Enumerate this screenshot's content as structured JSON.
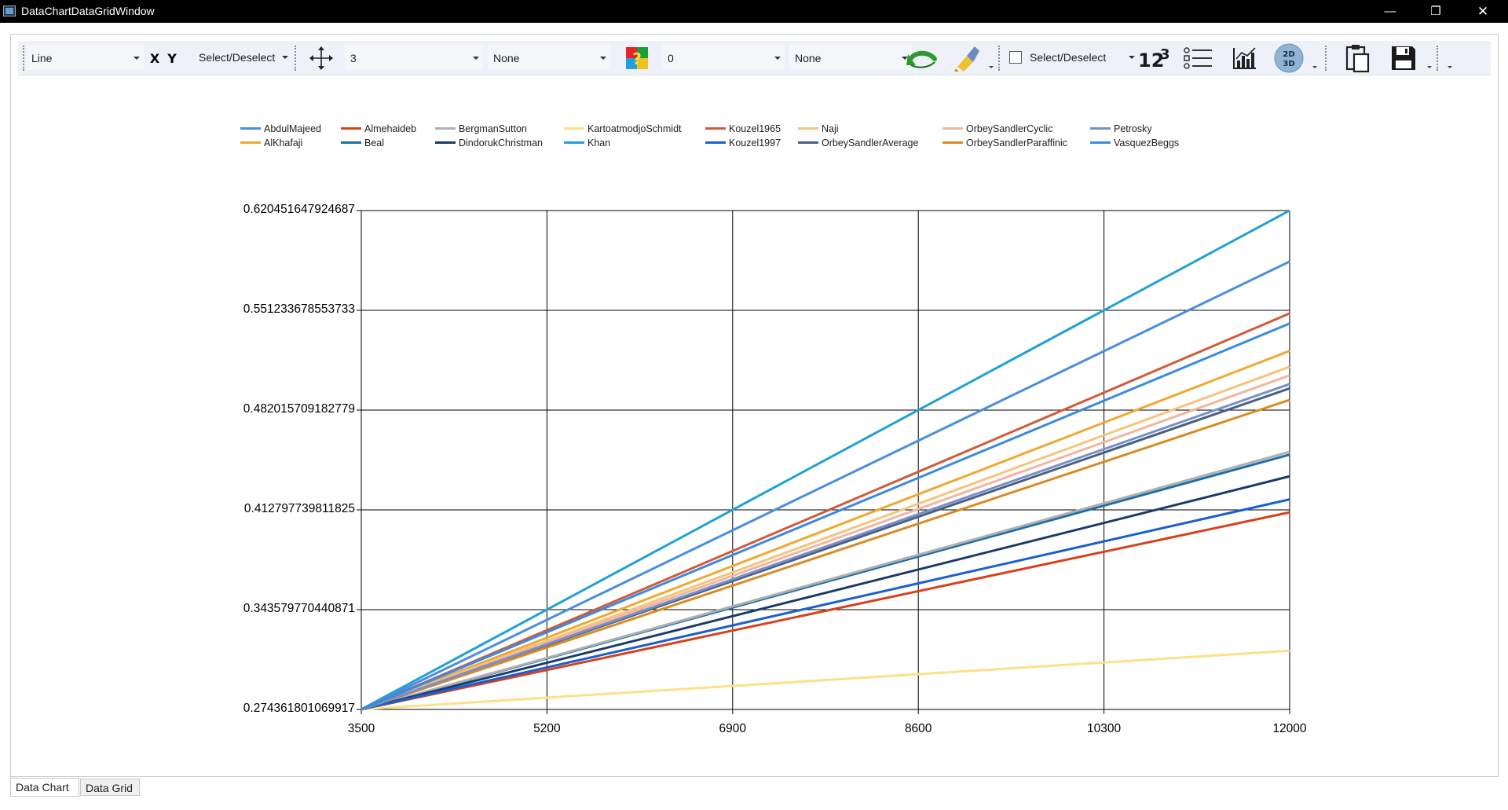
{
  "window": {
    "title": "DataChartDataGridWindow",
    "controls": {
      "minimize": "—",
      "maximize": "❐",
      "close": "✕"
    }
  },
  "toolbar": {
    "chart_type": "Line",
    "x_icon": "X",
    "y_icon": "Y",
    "select_deselect_1": "Select/Deselect",
    "line_width": "3",
    "marker_style": "None",
    "value_combo": "0",
    "label_style": "None",
    "select_deselect_2": "Select/Deselect",
    "icons": [
      "move-axes-icon",
      "color-help-icon",
      "undo-icon",
      "paint-brush-icon",
      "numbers-123-icon",
      "legend-list-icon",
      "chart-icon",
      "toggle-2d-3d-icon",
      "clipboard-icon",
      "save-icon"
    ],
    "label_2d": "2D",
    "label_3d": "3D",
    "label_123": "123"
  },
  "tabs": {
    "data_chart": "Data Chart",
    "data_grid": "Data Grid"
  },
  "chart_data": {
    "type": "line",
    "title": "",
    "xlabel": "",
    "ylabel": "",
    "x": [
      3500,
      12000
    ],
    "xticks": [
      "3500",
      "5200",
      "6900",
      "8600",
      "10300",
      "12000"
    ],
    "xlim": [
      3500,
      12000
    ],
    "yticks": [
      "0.620451647924687",
      "0.551233678553733",
      "0.482015709182779",
      "0.412797739811825",
      "0.343579770440871",
      "0.274361801069917"
    ],
    "ylim": [
      0.274361801069917,
      0.620451647924687
    ],
    "grid": true,
    "legend_placement": "top",
    "series": [
      {
        "name": "AbdulMajeed",
        "color": "#4a8fde",
        "values": [
          0.2744,
          0.5851
        ]
      },
      {
        "name": "AlKhafaji",
        "color": "#f0a830",
        "values": [
          0.2744,
          0.5231
        ]
      },
      {
        "name": "Almehaideb",
        "color": "#d9401a",
        "values": [
          0.2744,
          0.4111
        ]
      },
      {
        "name": "Beal",
        "color": "#1c6fa8",
        "values": [
          0.2744,
          0.4511
        ]
      },
      {
        "name": "BergmanSutton",
        "color": "#b0b0b0",
        "values": [
          0.2744,
          0.4531
        ]
      },
      {
        "name": "DindorukChristman",
        "color": "#1a3a6a",
        "values": [
          0.2744,
          0.4361
        ]
      },
      {
        "name": "KartoatmodjoSchmidt",
        "color": "#fde08a",
        "values": [
          0.2744,
          0.3151
        ]
      },
      {
        "name": "Khan",
        "color": "#21a0d8",
        "values": [
          0.2744,
          0.6205
        ]
      },
      {
        "name": "Kouzel1965",
        "color": "#d25a3a",
        "values": [
          0.2744,
          0.5491
        ]
      },
      {
        "name": "Kouzel1997",
        "color": "#1a5fd0",
        "values": [
          0.2744,
          0.4201
        ]
      },
      {
        "name": "Naji",
        "color": "#f6c47a",
        "values": [
          0.2744,
          0.5121
        ]
      },
      {
        "name": "OrbeySandlerAverage",
        "color": "#4a6080",
        "values": [
          0.2744,
          0.4971
        ]
      },
      {
        "name": "OrbeySandlerCyclic",
        "color": "#f2b5a0",
        "values": [
          0.2744,
          0.5061
        ]
      },
      {
        "name": "OrbeySandlerParaffinic",
        "color": "#dc8a20",
        "values": [
          0.2744,
          0.4891
        ]
      },
      {
        "name": "Petrosky",
        "color": "#7890c8",
        "values": [
          0.2744,
          0.5001
        ]
      },
      {
        "name": "VasquezBeggs",
        "color": "#3a8ae0",
        "values": [
          0.2744,
          0.5421
        ]
      }
    ]
  }
}
